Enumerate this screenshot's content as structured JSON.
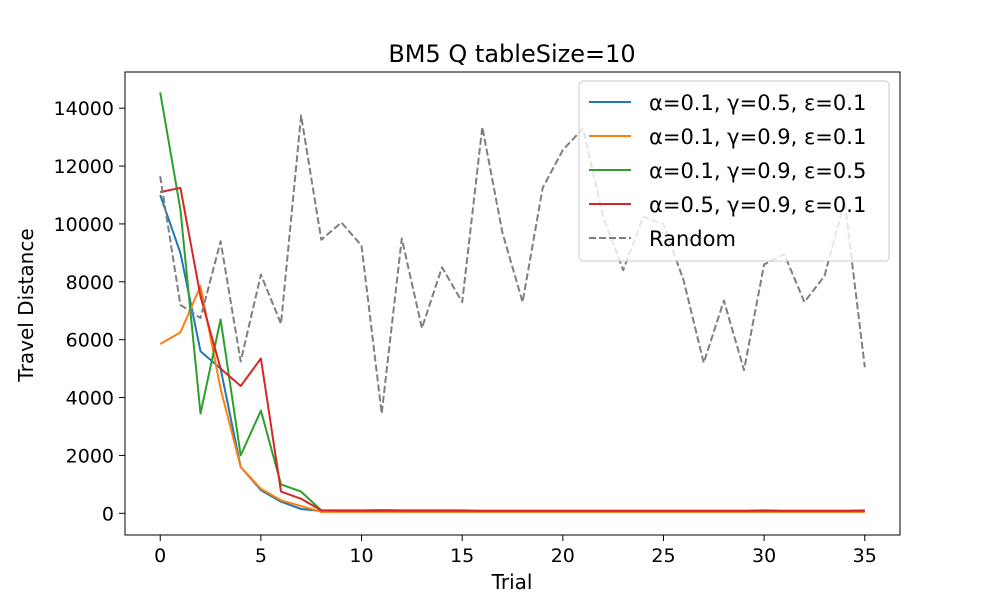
{
  "chart_data": {
    "type": "line",
    "title": "BM5  Q  tableSize=10",
    "xlabel": "Trial",
    "ylabel": "Travel Distance",
    "xlim": [
      -1.75,
      36.75
    ],
    "ylim": [
      -750,
      15250
    ],
    "xticks": [
      0,
      5,
      10,
      15,
      20,
      25,
      30,
      35
    ],
    "yticks": [
      0,
      2000,
      4000,
      6000,
      8000,
      10000,
      12000,
      14000
    ],
    "grid": false,
    "legend_position": "upper right",
    "x": [
      0,
      1,
      2,
      3,
      4,
      5,
      6,
      7,
      8,
      9,
      10,
      11,
      12,
      13,
      14,
      15,
      16,
      17,
      18,
      19,
      20,
      21,
      22,
      23,
      24,
      25,
      26,
      27,
      28,
      29,
      30,
      31,
      32,
      33,
      34,
      35
    ],
    "series": [
      {
        "name": "α=0.1, γ=0.5, ε=0.1",
        "color": "#1f77b4",
        "dash": "solid",
        "values": [
          11000,
          9000,
          5600,
          5000,
          1600,
          800,
          400,
          150,
          80,
          70,
          70,
          70,
          60,
          60,
          60,
          60,
          60,
          60,
          60,
          60,
          60,
          60,
          60,
          60,
          60,
          60,
          60,
          60,
          60,
          60,
          60,
          60,
          60,
          60,
          60,
          60
        ]
      },
      {
        "name": "α=0.1, γ=0.9, ε=0.1",
        "color": "#ff7f0e",
        "dash": "solid",
        "values": [
          5850,
          6250,
          7850,
          4300,
          1600,
          850,
          450,
          250,
          50,
          50,
          50,
          50,
          50,
          50,
          50,
          50,
          50,
          50,
          50,
          50,
          50,
          50,
          50,
          50,
          50,
          50,
          50,
          50,
          50,
          50,
          50,
          50,
          50,
          50,
          50,
          50
        ]
      },
      {
        "name": "α=0.1, γ=0.9, ε=0.5",
        "color": "#2ca02c",
        "dash": "solid",
        "values": [
          14550,
          10500,
          3450,
          6700,
          2000,
          3550,
          1000,
          750,
          100,
          80,
          80,
          80,
          80,
          80,
          80,
          80,
          80,
          80,
          80,
          80,
          80,
          80,
          80,
          80,
          80,
          80,
          80,
          80,
          80,
          80,
          80,
          80,
          80,
          80,
          80,
          80
        ]
      },
      {
        "name": "α=0.5, γ=0.9, ε=0.1",
        "color": "#d62728",
        "dash": "solid",
        "values": [
          11100,
          11250,
          7500,
          5000,
          4400,
          5350,
          750,
          500,
          100,
          100,
          100,
          110,
          100,
          100,
          100,
          100,
          90,
          90,
          90,
          90,
          90,
          90,
          90,
          90,
          90,
          90,
          90,
          90,
          90,
          90,
          100,
          90,
          90,
          90,
          90,
          100
        ]
      },
      {
        "name": "Random",
        "color": "#7f7f7f",
        "dash": "dashed",
        "values": [
          11650,
          7200,
          6750,
          9400,
          5250,
          8250,
          6550,
          13750,
          9450,
          10050,
          9250,
          3450,
          9500,
          6400,
          8500,
          7300,
          13350,
          9700,
          7300,
          11250,
          12550,
          13300,
          10250,
          8400,
          10250,
          10000,
          8050,
          5200,
          7350,
          4950,
          8600,
          8950,
          7300,
          8200,
          10800,
          5050
        ]
      }
    ]
  }
}
